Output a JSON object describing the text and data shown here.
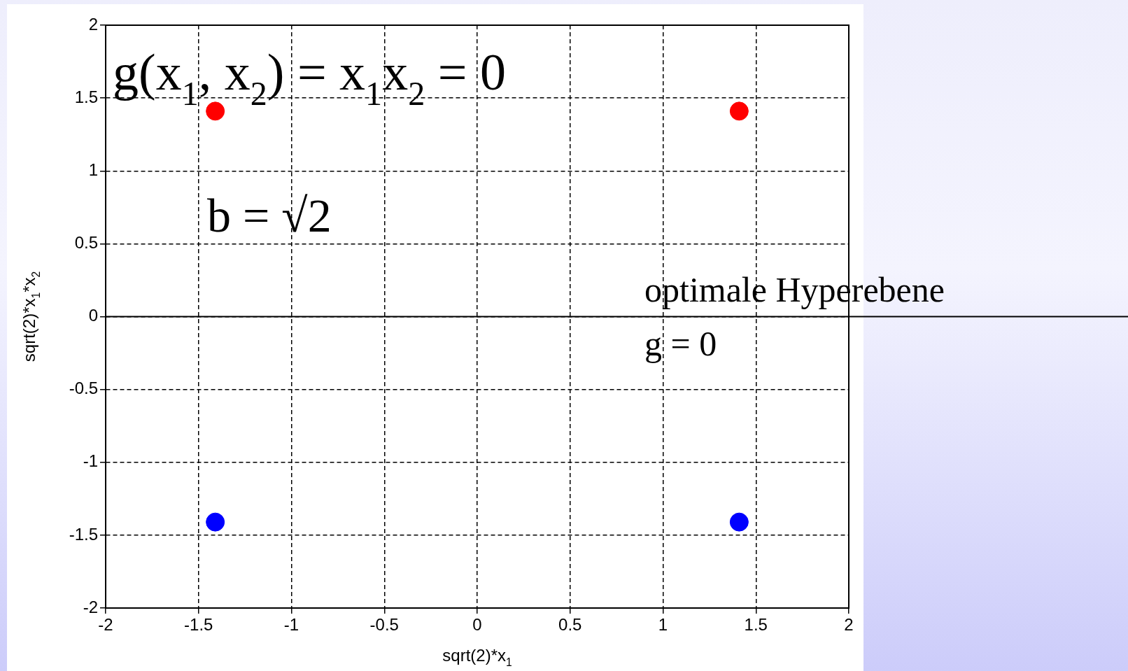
{
  "chart_data": {
    "type": "scatter",
    "xlabel": "sqrt(2)*x$_{1}$",
    "ylabel": "sqrt(2)*x$_{1}$*x$_{2}$",
    "x": [
      -1.41,
      1.41
    ],
    "series": [
      {
        "color": "#ff0000",
        "values": [
          1.41,
          1.41
        ]
      },
      {
        "color": "#0000ff",
        "values": [
          -1.41,
          -1.41
        ]
      }
    ],
    "xlim": [
      -2,
      2
    ],
    "ylim": [
      -2,
      2
    ],
    "xticks": [
      -2,
      -1.5,
      -1,
      -0.5,
      0,
      0.5,
      1,
      1.5,
      2
    ],
    "yticks": [
      -2,
      -1.5,
      -1,
      -0.5,
      0,
      0.5,
      1,
      1.5,
      2
    ],
    "grid": true,
    "legend": false,
    "marker": "circle",
    "ref_lines": [
      {
        "axis": "y",
        "value": 0,
        "color": "#000000"
      }
    ],
    "annotations": [
      "g(x$_{1}$, x$_{2}$) = x$_{1}$x$_{2}$ = 0",
      "b = √2",
      "optimale Hyperebene",
      "g = 0"
    ]
  }
}
